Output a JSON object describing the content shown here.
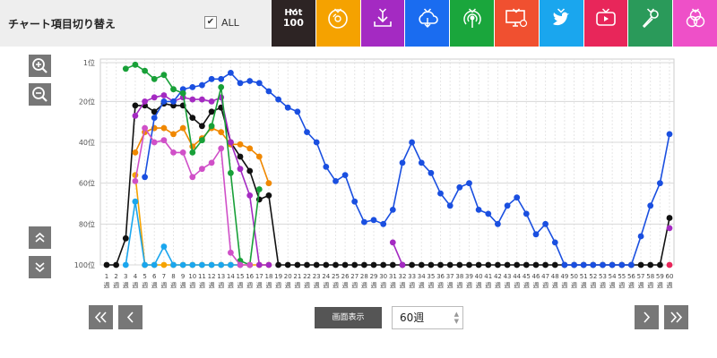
{
  "header": {
    "title": "チャート項目切り替え",
    "all_label": "ALL",
    "all_checked": "✔",
    "categories": [
      {
        "name": "hot100",
        "label_top": "Hot",
        "label_bottom": "100",
        "color": "#2d2424"
      },
      {
        "name": "sales",
        "icon": "disc-icon",
        "color": "#f5a200"
      },
      {
        "name": "download",
        "icon": "download-icon",
        "color": "#a42ac2"
      },
      {
        "name": "streaming",
        "icon": "cloud-icon",
        "color": "#1a6cf0"
      },
      {
        "name": "radio",
        "icon": "radio-icon",
        "color": "#1aa63c"
      },
      {
        "name": "lookup",
        "icon": "computer-icon",
        "color": "#f05030"
      },
      {
        "name": "twitter",
        "icon": "twitter-icon",
        "color": "#1aa6ee"
      },
      {
        "name": "video",
        "icon": "play-icon",
        "color": "#e8265a"
      },
      {
        "name": "karaoke",
        "icon": "microphone-icon",
        "color": "#2a9a5a"
      },
      {
        "name": "all-mix",
        "icon": "circles-icon",
        "color": "#ee50c8"
      }
    ]
  },
  "footer": {
    "view_label": "画面表示",
    "weeks_value": "60週"
  },
  "chart_data": {
    "type": "line",
    "x": [
      1,
      2,
      3,
      4,
      5,
      6,
      7,
      8,
      9,
      10,
      11,
      12,
      13,
      14,
      15,
      16,
      17,
      18,
      19,
      20,
      21,
      22,
      23,
      24,
      25,
      26,
      27,
      28,
      29,
      30,
      31,
      32,
      33,
      34,
      35,
      36,
      37,
      38,
      39,
      40,
      41,
      42,
      43,
      44,
      45,
      46,
      47,
      48,
      49,
      50,
      51,
      52,
      53,
      54,
      55,
      56,
      57,
      58,
      59,
      60
    ],
    "x_tick_labels": [
      "1",
      "2",
      "3",
      "4",
      "5",
      "6",
      "7",
      "8",
      "9",
      "10",
      "11",
      "12",
      "13",
      "14",
      "15",
      "16",
      "17",
      "18",
      "19",
      "20",
      "21",
      "22",
      "23",
      "24",
      "25",
      "26",
      "27",
      "28",
      "29",
      "30",
      "31",
      "32",
      "33",
      "34",
      "35",
      "36",
      "37",
      "38",
      "39",
      "40",
      "41",
      "42",
      "43",
      "44",
      "45",
      "46",
      "47",
      "48",
      "49",
      "50",
      "51",
      "52",
      "53",
      "54",
      "55",
      "56",
      "57",
      "58",
      "59",
      "60"
    ],
    "x_unit_label": "週",
    "y_tick_labels": [
      "1位",
      "20位",
      "40位",
      "60位",
      "80位",
      "100位"
    ],
    "y_ticks": [
      1,
      20,
      40,
      60,
      80,
      100
    ],
    "ylim": [
      1,
      100
    ],
    "y_inverted": true,
    "grid": true,
    "series": [
      {
        "key": "hot100",
        "color": "#111111",
        "dash": "",
        "values": [
          100,
          100,
          87,
          22,
          22,
          25,
          21,
          22,
          22,
          28,
          32,
          25,
          23,
          40,
          47,
          54,
          68,
          66,
          100,
          100,
          100,
          100,
          100,
          100,
          100,
          100,
          100,
          100,
          100,
          100,
          100,
          100,
          100,
          100,
          100,
          100,
          100,
          100,
          100,
          100,
          100,
          100,
          100,
          100,
          100,
          100,
          100,
          100,
          100,
          100,
          100,
          100,
          100,
          100,
          100,
          100,
          100,
          100,
          100,
          77
        ],
        "end_color": "#e8265a"
      },
      {
        "key": "sales",
        "color": "#f08800",
        "dash": "",
        "values": [
          null,
          null,
          null,
          45,
          35,
          33,
          33,
          36,
          33,
          42,
          38,
          33,
          35,
          41,
          41,
          43,
          47,
          60,
          null,
          null,
          null,
          null,
          null,
          null,
          null,
          null,
          null,
          null,
          null,
          null,
          null,
          null,
          null,
          null,
          null,
          null,
          null,
          null,
          null,
          null,
          null,
          null,
          null,
          null,
          null,
          null,
          null,
          null,
          null,
          null,
          null,
          null,
          null,
          null,
          null,
          null,
          null,
          null,
          null,
          null
        ]
      },
      {
        "key": "sales-weekly",
        "color": "#f5a200",
        "dash": "",
        "values": [
          null,
          null,
          null,
          56,
          100,
          100,
          100,
          100,
          100,
          100,
          100,
          100,
          100,
          100,
          100,
          100,
          100,
          100,
          null,
          null,
          null,
          null,
          null,
          null,
          null,
          null,
          null,
          null,
          null,
          null,
          null,
          null,
          null,
          null,
          null,
          null,
          null,
          null,
          null,
          null,
          null,
          null,
          null,
          null,
          null,
          null,
          null,
          null,
          null,
          null,
          null,
          null,
          null,
          null,
          null,
          null,
          null,
          null,
          null,
          null
        ]
      },
      {
        "key": "download",
        "color": "#a42ac2",
        "dash": "",
        "values": [
          null,
          null,
          null,
          27,
          20,
          18,
          17,
          20,
          18,
          19,
          19,
          20,
          18,
          40,
          53,
          66,
          100,
          100,
          null,
          null,
          null,
          null,
          null,
          null,
          null,
          null,
          null,
          null,
          null,
          null,
          89,
          100,
          null,
          null,
          null,
          null,
          null,
          null,
          null,
          null,
          null,
          null,
          null,
          null,
          null,
          null,
          null,
          null,
          null,
          null,
          null,
          null,
          null,
          null,
          null,
          null,
          null,
          null,
          null,
          82
        ]
      },
      {
        "key": "streaming",
        "color": "#1a4fe0",
        "dash": "",
        "values": [
          null,
          null,
          null,
          null,
          57,
          28,
          20,
          20,
          14,
          13,
          12,
          9,
          9,
          6,
          11,
          10,
          11,
          15,
          19,
          23,
          25,
          35,
          40,
          52,
          59,
          56,
          69,
          79,
          78,
          80,
          73,
          50,
          40,
          50,
          55,
          65,
          71,
          62,
          60,
          73,
          75,
          80,
          71,
          67,
          75,
          85,
          80,
          89,
          100,
          100,
          100,
          100,
          100,
          100,
          100,
          100,
          86,
          71,
          60,
          36
        ]
      },
      {
        "key": "radio",
        "color": "#18a038",
        "dash": "",
        "values": [
          null,
          null,
          4,
          2,
          5,
          9,
          7,
          14,
          16,
          45,
          39,
          32,
          13,
          55,
          98,
          100,
          63,
          null,
          null,
          null,
          null,
          null,
          null,
          null,
          null,
          null,
          null,
          null,
          null,
          null,
          null,
          null,
          null,
          null,
          null,
          null,
          null,
          null,
          null,
          null,
          null,
          null,
          null,
          null,
          null,
          null,
          null,
          null,
          null,
          null,
          null,
          null,
          null,
          null,
          null,
          null,
          null,
          null,
          null,
          null
        ]
      },
      {
        "key": "twitter",
        "color": "#1aa6ee",
        "dash": "",
        "values": [
          null,
          null,
          100,
          69,
          100,
          100,
          91,
          100,
          100,
          100,
          100,
          100,
          100,
          100,
          100,
          null,
          null,
          null,
          null,
          null,
          null,
          null,
          null,
          null,
          null,
          null,
          null,
          null,
          null,
          null,
          null,
          null,
          null,
          null,
          null,
          null,
          null,
          null,
          null,
          null,
          null,
          null,
          null,
          null,
          null,
          null,
          null,
          null,
          null,
          null,
          null,
          null,
          null,
          null,
          null,
          null,
          null,
          null,
          null,
          null
        ]
      },
      {
        "key": "lookup",
        "color": "#d050c8",
        "dash": "",
        "values": [
          null,
          null,
          null,
          59,
          33,
          40,
          39,
          45,
          45,
          57,
          53,
          50,
          43,
          94,
          100,
          100,
          null,
          null,
          null,
          null,
          null,
          null,
          null,
          null,
          null,
          null,
          null,
          null,
          null,
          null,
          null,
          null,
          null,
          null,
          null,
          null,
          null,
          null,
          null,
          null,
          null,
          null,
          null,
          null,
          null,
          null,
          null,
          null,
          null,
          null,
          null,
          null,
          null,
          null,
          null,
          null,
          null,
          null,
          null,
          null
        ]
      }
    ]
  }
}
